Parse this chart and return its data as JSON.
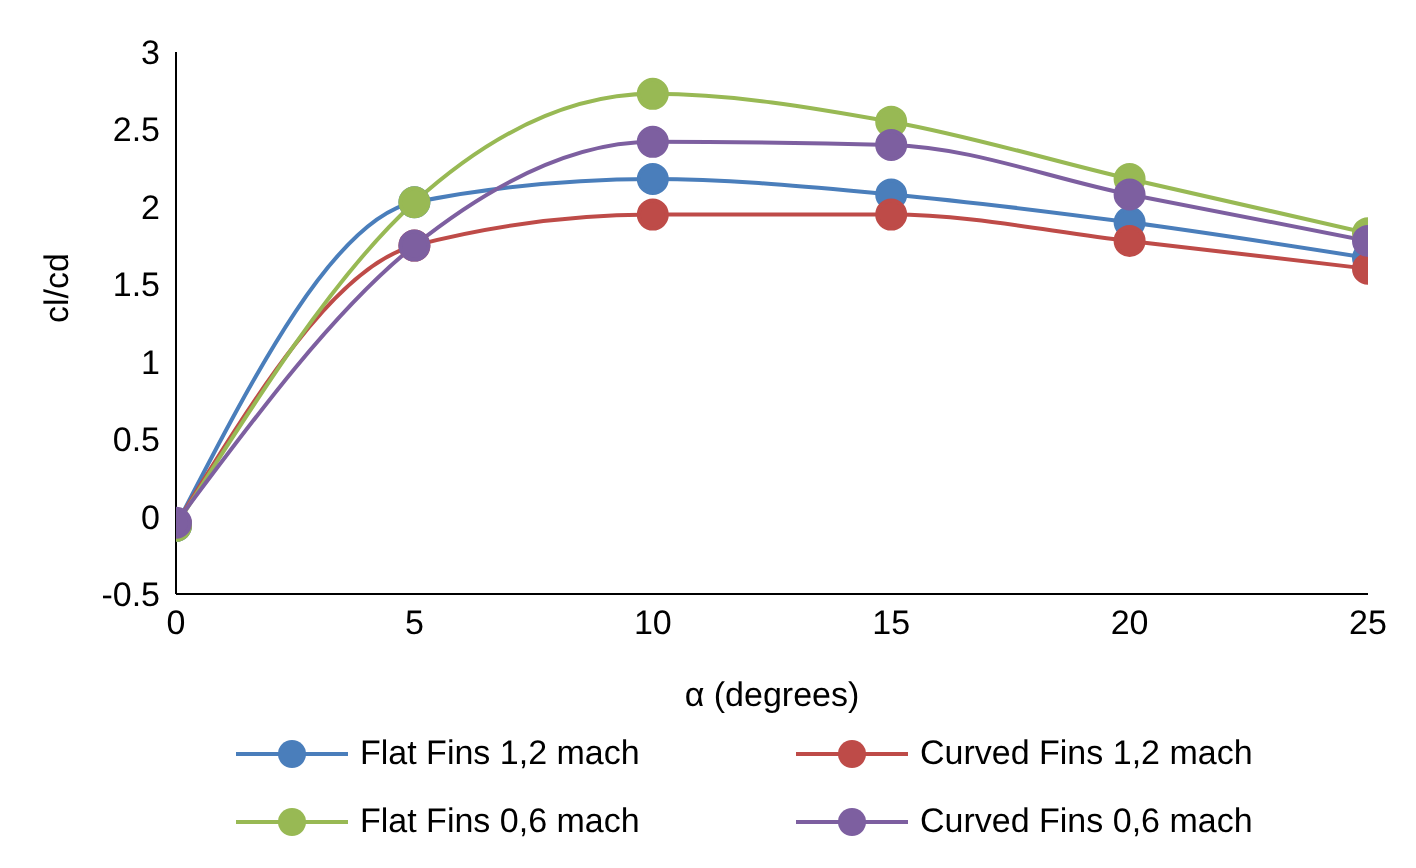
{
  "chart_data": {
    "type": "line",
    "xlabel": "α (degrees)",
    "ylabel": "cl/cd",
    "x": [
      0,
      5,
      10,
      15,
      20,
      25
    ],
    "series": [
      {
        "name": "Flat Fins 1,2 mach",
        "color": "#4a7ebb",
        "values": [
          -0.06,
          2.03,
          2.18,
          2.08,
          1.9,
          1.67
        ]
      },
      {
        "name": "Curved Fins 1,2 mach",
        "color": "#be4b48",
        "values": [
          -0.05,
          1.75,
          1.95,
          1.95,
          1.78,
          1.6
        ]
      },
      {
        "name": "Flat Fins 0,6 mach",
        "color": "#98b954",
        "values": [
          -0.06,
          2.03,
          2.73,
          2.55,
          2.18,
          1.83
        ]
      },
      {
        "name": "Curved Fins 0,6 mach",
        "color": "#7d5fa0",
        "values": [
          -0.04,
          1.75,
          2.42,
          2.4,
          2.08,
          1.78
        ]
      }
    ],
    "xlim": [
      0,
      25
    ],
    "xticks": [
      0,
      5,
      10,
      15,
      20,
      25
    ],
    "ylim": [
      -0.5,
      3
    ],
    "yticks": [
      -0.5,
      0,
      0.5,
      1,
      1.5,
      2,
      2.5,
      3
    ],
    "grid": false,
    "legend": "bottom",
    "marker": "circle",
    "line_style": "solid"
  }
}
